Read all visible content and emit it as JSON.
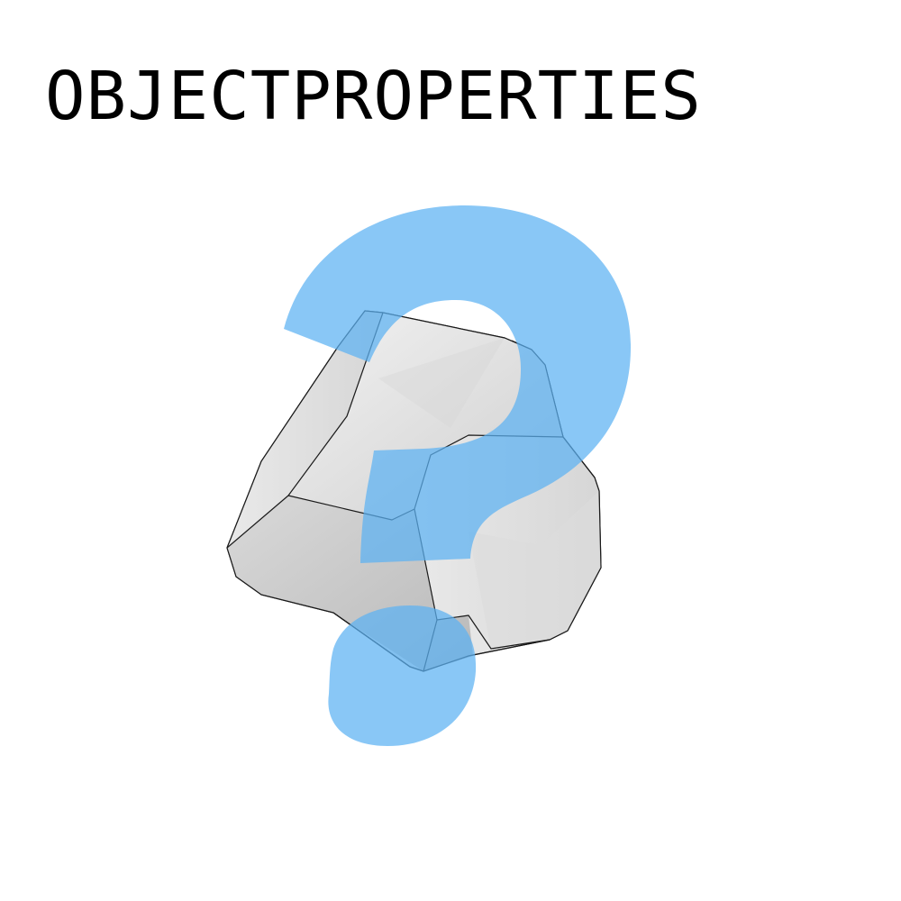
{
  "title": "OBJECTPROPERTIES",
  "graphic": {
    "object_icon": "faceted-polyhedron-icon",
    "overlay_icon": "question-mark-icon",
    "colors": {
      "background": "#ffffff",
      "title_text": "#000000",
      "question_mark": "#5cb2f3",
      "solid_light": "#ececec",
      "solid_mid": "#d3d3d3",
      "solid_dark": "#bdbdbd",
      "edges": "#1a1a1a"
    }
  }
}
